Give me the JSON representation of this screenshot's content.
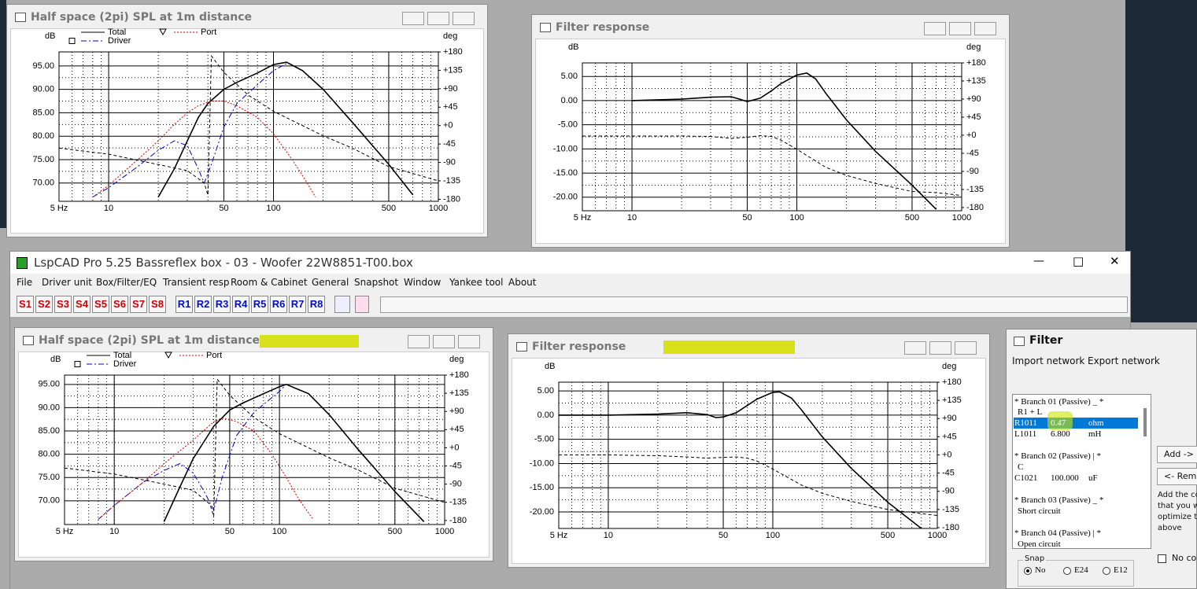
{
  "windows": [
    {
      "title": "Half space (2pi) SPL at 1m distance",
      "chart": {
        "type": "line",
        "x_scale": "log",
        "y_label": "dB",
        "y2_label": "deg",
        "xlim": [
          5,
          1000
        ],
        "xticks": [
          {
            "value": 5,
            "label": "5 Hz"
          },
          10,
          50,
          100,
          500,
          1000
        ],
        "ylim": [
          66.1,
          98
        ],
        "yticks": [
          {
            "value": 70,
            "label": "70.00"
          },
          {
            "value": 75,
            "label": "75.00"
          },
          {
            "value": 80,
            "label": "80.00"
          },
          {
            "value": 85,
            "label": "85.00"
          },
          {
            "value": 90,
            "label": "90.00"
          },
          {
            "value": 95,
            "label": "95.00"
          }
        ],
        "y2lim": [
          -185,
          180
        ],
        "y2ticks": [
          -180,
          -135,
          -90,
          -45,
          {
            "value": 0,
            "label": "+0"
          },
          {
            "value": 45,
            "label": "+45"
          },
          {
            "value": 90,
            "label": "+90"
          },
          {
            "value": 135,
            "label": "+135"
          },
          {
            "value": 180,
            "label": "+180"
          }
        ],
        "series": [
          {
            "name": "Total",
            "color": "#000000",
            "style": "solid",
            "x": [
              20,
              25,
              30,
              35,
              40,
              50,
              60,
              80,
              100,
              120,
              150,
              200,
              300,
              500,
              700
            ],
            "values": [
              67,
              73,
              79,
              84,
              87,
              90,
              91.5,
              93.5,
              95.3,
              95.8,
              94,
              90,
              83,
              74,
              67.5
            ]
          },
          {
            "name": "Driver",
            "color": "#0000cc",
            "style": "dashdot",
            "marker": "square",
            "x": [
              8,
              10,
              15,
              20,
              25,
              30,
              35,
              38,
              42,
              50,
              60,
              80,
              100,
              120
            ],
            "values": [
              67,
              69,
              73.5,
              77,
              79,
              78,
              73,
              70,
              74,
              82,
              87,
              91,
              94,
              95.5
            ]
          },
          {
            "name": "Port",
            "color": "#dd0000",
            "style": "dotted",
            "marker": "triangle",
            "x": [
              8,
              10,
              15,
              20,
              25,
              30,
              35,
              42,
              50,
              60,
              80,
              100,
              130,
              160,
              180
            ],
            "values": [
              67,
              69.5,
              75,
              79,
              82.5,
              85,
              86.5,
              87.5,
              87.5,
              86.5,
              84,
              80.5,
              75,
              70,
              67
            ]
          },
          {
            "color": "#000000",
            "style": "dashed",
            "axis": "y2",
            "x": [
              5,
              10,
              20,
              30,
              38,
              40,
              42,
              50,
              70,
              100,
              150,
              200,
              300,
              500,
              1000
            ],
            "values": [
              -55,
              -70,
              -95,
              -110,
              -140,
              -170,
              170,
              130,
              75,
              35,
              0,
              -25,
              -55,
              -100,
              -135
            ]
          }
        ]
      }
    },
    {
      "title": "Filter response",
      "chart": {
        "type": "line",
        "x_scale": "log",
        "y_label": "dB",
        "y2_label": "deg",
        "xlim": [
          5,
          1000
        ],
        "xticks": [
          {
            "value": 5,
            "label": "5 Hz"
          },
          10,
          50,
          100,
          500,
          1000
        ],
        "ylim": [
          -22.8,
          7.8
        ],
        "yticks": [
          {
            "value": -20,
            "label": "-20.00"
          },
          {
            "value": -15,
            "label": "-15.00"
          },
          {
            "value": -10,
            "label": "-10.00"
          },
          {
            "value": -5,
            "label": "-5.00"
          },
          {
            "value": 0,
            "label": "0.00"
          },
          {
            "value": 5,
            "label": "5.00"
          }
        ],
        "y2lim": [
          -188,
          180
        ],
        "y2ticks": [
          -180,
          -135,
          -90,
          -45,
          {
            "value": 0,
            "label": "+0"
          },
          {
            "value": 45,
            "label": "+45"
          },
          {
            "value": 90,
            "label": "+90"
          },
          {
            "value": 135,
            "label": "+135"
          },
          {
            "value": 180,
            "label": "+180"
          }
        ],
        "series": [
          {
            "color": "#000000",
            "style": "solid",
            "x": [
              10,
              20,
              30,
              40,
              45,
              50,
              60,
              70,
              80,
              100,
              115,
              130,
              150,
              200,
              300,
              500,
              700
            ],
            "values": [
              0,
              0.3,
              0.7,
              0.8,
              0.3,
              -0.2,
              0.5,
              2,
              3.5,
              5.3,
              5.7,
              4.5,
              1.5,
              -4,
              -10.5,
              -17.5,
              -22.5
            ]
          },
          {
            "color": "#000000",
            "style": "dashed",
            "axis": "y2",
            "x": [
              5,
              10,
              20,
              30,
              40,
              50,
              60,
              70,
              80,
              100,
              150,
              200,
              300,
              500,
              700,
              1000
            ],
            "values": [
              -2,
              -2,
              -2,
              -3,
              -8,
              -5,
              -1,
              -3,
              -12,
              -35,
              -80,
              -100,
              -120,
              -140,
              -143,
              -150
            ]
          }
        ]
      }
    },
    {
      "title": "Half space (2pi) SPL at 1m distance",
      "chart": {
        "type": "line",
        "x_scale": "log",
        "y_label": "dB",
        "y2_label": "deg",
        "xlim": [
          5,
          1000
        ],
        "xticks": [
          {
            "value": 5,
            "label": "5 Hz"
          },
          10,
          50,
          100,
          500,
          1000
        ],
        "ylim": [
          64.9,
          97
        ],
        "yticks": [
          {
            "value": 70,
            "label": "70.00"
          },
          {
            "value": 75,
            "label": "75.00"
          },
          {
            "value": 80,
            "label": "80.00"
          },
          {
            "value": 85,
            "label": "85.00"
          },
          {
            "value": 90,
            "label": "90.00"
          },
          {
            "value": 95,
            "label": "95.00"
          }
        ],
        "y2lim": [
          -190,
          180
        ],
        "y2ticks": [
          -180,
          -135,
          -90,
          -45,
          {
            "value": 0,
            "label": "+0"
          },
          {
            "value": 45,
            "label": "+45"
          },
          {
            "value": 90,
            "label": "+90"
          },
          {
            "value": 135,
            "label": "+135"
          },
          {
            "value": 180,
            "label": "+180"
          }
        ],
        "series": [
          {
            "name": "Total",
            "color": "#000000",
            "style": "solid",
            "x": [
              20,
              25,
              30,
              40,
              50,
              60,
              80,
              100,
              110,
              150,
              200,
              300,
              500,
              750
            ],
            "values": [
              65.5,
              73,
              79,
              86,
              89.5,
              91,
              93,
              94.5,
              95,
              93,
              88.5,
              81,
              72,
              65.5
            ]
          },
          {
            "name": "Driver",
            "color": "#0000cc",
            "style": "dashdot",
            "marker": "square",
            "x": [
              8,
              10,
              15,
              20,
              25,
              30,
              35,
              40,
              45,
              55,
              70,
              100,
              110
            ],
            "values": [
              66,
              69,
              74,
              76.5,
              78,
              76,
              72,
              68,
              75,
              84,
              89,
              93.5,
              95
            ]
          },
          {
            "name": "Port",
            "color": "#dd0000",
            "style": "dotted",
            "marker": "triangle",
            "x": [
              8,
              10,
              15,
              20,
              30,
              40,
              45,
              55,
              70,
              90,
              110,
              130,
              160
            ],
            "values": [
              66,
              69,
              74,
              78,
              83,
              87,
              87.8,
              87,
              85,
              80,
              75,
              70.5,
              66
            ]
          },
          {
            "color": "#000000",
            "style": "dashed",
            "axis": "y2",
            "x": [
              5,
              10,
              20,
              30,
              38,
              40,
              42,
              50,
              70,
              100,
              150,
              200,
              300,
              500,
              1000
            ],
            "values": [
              -50,
              -65,
              -90,
              -105,
              -140,
              -170,
              170,
              130,
              75,
              35,
              0,
              -25,
              -55,
              -100,
              -135
            ]
          }
        ]
      }
    },
    {
      "title": "Filter response",
      "chart": {
        "type": "line",
        "x_scale": "log",
        "y_label": "dB",
        "y2_label": "deg",
        "xlim": [
          5,
          1000
        ],
        "xticks": [
          {
            "value": 5,
            "label": "5 Hz"
          },
          10,
          50,
          100,
          500,
          1000
        ],
        "ylim": [
          -23.4,
          6.8
        ],
        "yticks": [
          {
            "value": -20,
            "label": "-20.00"
          },
          {
            "value": -15,
            "label": "-15.00"
          },
          {
            "value": -10,
            "label": "-10.00"
          },
          {
            "value": -5,
            "label": "-5.00"
          },
          {
            "value": 0,
            "label": "0.00"
          },
          {
            "value": 5,
            "label": "5.00"
          }
        ],
        "y2lim": [
          -182,
          180
        ],
        "y2ticks": [
          -180,
          -135,
          -90,
          -45,
          {
            "value": 0,
            "label": "+0"
          },
          {
            "value": 45,
            "label": "+45"
          },
          {
            "value": 90,
            "label": "+90"
          },
          {
            "value": 135,
            "label": "+135"
          },
          {
            "value": 180,
            "label": "+180"
          }
        ],
        "series": [
          {
            "color": "#000000",
            "style": "solid",
            "x": [
              5,
              10,
              20,
              30,
              40,
              45,
              50,
              60,
              70,
              80,
              100,
              110,
              130,
              150,
              200,
              300,
              500,
              800
            ],
            "values": [
              0,
              0,
              0.2,
              0.5,
              0.1,
              -0.5,
              -0.4,
              0.5,
              2,
              3.3,
              4.7,
              4.8,
              3.5,
              1,
              -4.5,
              -11,
              -18,
              -23.4
            ]
          },
          {
            "color": "#000000",
            "style": "dashed",
            "axis": "y2",
            "x": [
              5,
              10,
              20,
              30,
              40,
              50,
              60,
              70,
              80,
              100,
              150,
              200,
              300,
              500,
              1000
            ],
            "values": [
              0,
              0,
              -2,
              -5,
              -8,
              -6,
              -5,
              -8,
              -15,
              -35,
              -75,
              -95,
              -115,
              -135,
              -150
            ]
          }
        ]
      }
    }
  ],
  "app": {
    "title": "LspCAD Pro 5.25 Bassreflex box - 03 - Woofer 22W8851-T00.box",
    "menu": [
      "File",
      "Driver unit",
      "Box/Filter/EQ",
      "Transient resp",
      "Room & Cabinet",
      "General",
      "Snapshot",
      "Window",
      "Yankee tool",
      "About"
    ],
    "toolbar": [
      "S1",
      "S2",
      "S3",
      "S4",
      "S5",
      "S6",
      "S7",
      "S8",
      "R1",
      "R2",
      "R3",
      "R4",
      "R5",
      "R6",
      "R7",
      "R8"
    ]
  },
  "filter_panel": {
    "title": "Filter",
    "menu": [
      "Import network",
      "Export network"
    ],
    "list": [
      [
        "* Branch 01 (Passive) _ *"
      ],
      [
        "R1 + L"
      ],
      [
        "R1011",
        "0.47",
        "ohm"
      ],
      [
        "L1011",
        "6.800",
        "mH"
      ],
      [
        "* Branch 02 (Passive) | *"
      ],
      [
        "C"
      ],
      [
        "C1021",
        "100.000",
        "uF"
      ],
      [
        "* Branch 03 (Passive) _ *"
      ],
      [
        "Short circuit"
      ],
      [
        "* Branch 04 (Passive) | *"
      ],
      [
        "Open circuit"
      ]
    ],
    "buttons": [
      "Add ->",
      "<- Remov"
    ],
    "help": [
      "Add the co",
      "that you wi",
      "optimize to",
      "above"
    ],
    "checkbox": "No con",
    "snap": {
      "label": "Snap",
      "options": [
        "No",
        "E24",
        "E12"
      ]
    }
  }
}
